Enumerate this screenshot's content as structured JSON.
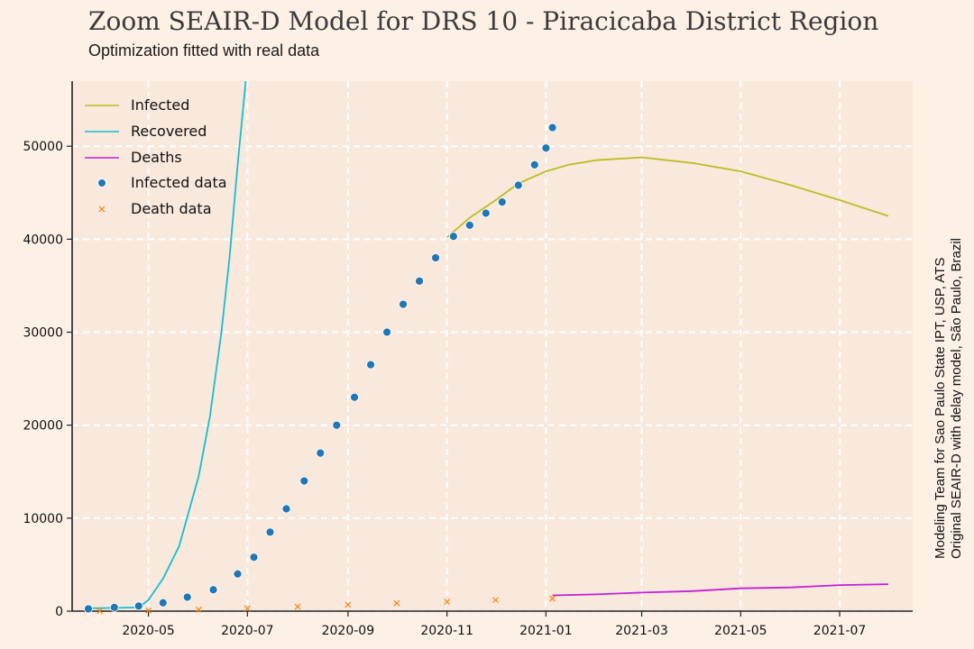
{
  "colors": {
    "background": "#fdf1e6",
    "plot_background": "#f9e8dc",
    "grid": "#ffffff",
    "infected": "#bcbd22",
    "recovered": "#17becf",
    "deaths": "#c41fd6",
    "infected_data": "#1f77b4",
    "death_data": "#ff7f0e"
  },
  "chart_data": {
    "type": "line",
    "title": "Zoom SEAIR-D Model for DRS 10 - Piracicaba District Region",
    "subtitle": "Optimization fitted with real data",
    "side_note": [
      "Modeling Team for Sao Paulo State IPT, USP, ATS",
      "Original SEAIR-D with delay model, São Paulo, Brazil"
    ],
    "grid": true,
    "legend_position": "top-left",
    "xlim": [
      "2020-03-15",
      "2021-08-15"
    ],
    "ylim": [
      0,
      57000
    ],
    "x_ticks": [
      "2020-05",
      "2020-07",
      "2020-09",
      "2020-11",
      "2021-01",
      "2021-03",
      "2021-05",
      "2021-07"
    ],
    "x_tick_dates": [
      "2020-05-01",
      "2020-07-01",
      "2020-09-01",
      "2020-11-01",
      "2021-01-01",
      "2021-03-01",
      "2021-05-01",
      "2021-07-01"
    ],
    "y_ticks": [
      0,
      10000,
      20000,
      30000,
      40000,
      50000
    ],
    "series": [
      {
        "name": "Infected",
        "kind": "line",
        "color": "#bcbd22",
        "points": [
          [
            "2020-11-01",
            40200
          ],
          [
            "2020-11-15",
            42300
          ],
          [
            "2020-12-01",
            44200
          ],
          [
            "2020-12-15",
            46000
          ],
          [
            "2021-01-01",
            47300
          ],
          [
            "2021-01-15",
            48000
          ],
          [
            "2021-02-01",
            48500
          ],
          [
            "2021-03-01",
            48800
          ],
          [
            "2021-04-01",
            48200
          ],
          [
            "2021-05-01",
            47300
          ],
          [
            "2021-06-01",
            45800
          ],
          [
            "2021-07-01",
            44200
          ],
          [
            "2021-07-31",
            42500
          ]
        ]
      },
      {
        "name": "Recovered",
        "kind": "line",
        "color": "#17becf",
        "points": [
          [
            "2020-03-25",
            300
          ],
          [
            "2020-04-25",
            400
          ],
          [
            "2020-05-01",
            1200
          ],
          [
            "2020-05-10",
            3500
          ],
          [
            "2020-05-20",
            7000
          ],
          [
            "2020-06-01",
            14500
          ],
          [
            "2020-06-08",
            21000
          ],
          [
            "2020-06-15",
            30000
          ],
          [
            "2020-06-20",
            38000
          ],
          [
            "2020-06-25",
            48000
          ],
          [
            "2020-06-30",
            57000
          ]
        ]
      },
      {
        "name": "Deaths",
        "kind": "line",
        "color": "#c41fd6",
        "points": [
          [
            "2021-01-05",
            1700
          ],
          [
            "2021-02-01",
            1800
          ],
          [
            "2021-03-01",
            2000
          ],
          [
            "2021-04-01",
            2150
          ],
          [
            "2021-05-01",
            2450
          ],
          [
            "2021-06-01",
            2550
          ],
          [
            "2021-07-01",
            2800
          ],
          [
            "2021-07-31",
            2900
          ]
        ]
      },
      {
        "name": "Infected data",
        "kind": "scatter",
        "marker": "circle",
        "color": "#1f77b4",
        "points": [
          [
            "2020-03-25",
            250
          ],
          [
            "2020-04-10",
            400
          ],
          [
            "2020-04-25",
            550
          ],
          [
            "2020-05-10",
            900
          ],
          [
            "2020-05-25",
            1500
          ],
          [
            "2020-06-10",
            2300
          ],
          [
            "2020-06-25",
            4000
          ],
          [
            "2020-07-05",
            5800
          ],
          [
            "2020-07-15",
            8500
          ],
          [
            "2020-07-25",
            11000
          ],
          [
            "2020-08-05",
            14000
          ],
          [
            "2020-08-15",
            17000
          ],
          [
            "2020-08-25",
            20000
          ],
          [
            "2020-09-05",
            23000
          ],
          [
            "2020-09-15",
            26500
          ],
          [
            "2020-09-25",
            30000
          ],
          [
            "2020-10-05",
            33000
          ],
          [
            "2020-10-15",
            35500
          ],
          [
            "2020-10-25",
            38000
          ],
          [
            "2020-11-05",
            40300
          ],
          [
            "2020-11-15",
            41500
          ],
          [
            "2020-11-25",
            42800
          ],
          [
            "2020-12-05",
            44000
          ],
          [
            "2020-12-15",
            45800
          ],
          [
            "2020-12-25",
            48000
          ],
          [
            "2021-01-01",
            49800
          ],
          [
            "2021-01-05",
            52000
          ]
        ]
      },
      {
        "name": "Death data",
        "kind": "scatter",
        "marker": "x",
        "color": "#ff7f0e",
        "points": [
          [
            "2020-04-01",
            20
          ],
          [
            "2020-05-01",
            60
          ],
          [
            "2020-06-01",
            150
          ],
          [
            "2020-07-01",
            300
          ],
          [
            "2020-08-01",
            480
          ],
          [
            "2020-09-01",
            680
          ],
          [
            "2020-10-01",
            850
          ],
          [
            "2020-11-01",
            1000
          ],
          [
            "2020-12-01",
            1200
          ],
          [
            "2021-01-05",
            1350
          ]
        ]
      }
    ]
  }
}
